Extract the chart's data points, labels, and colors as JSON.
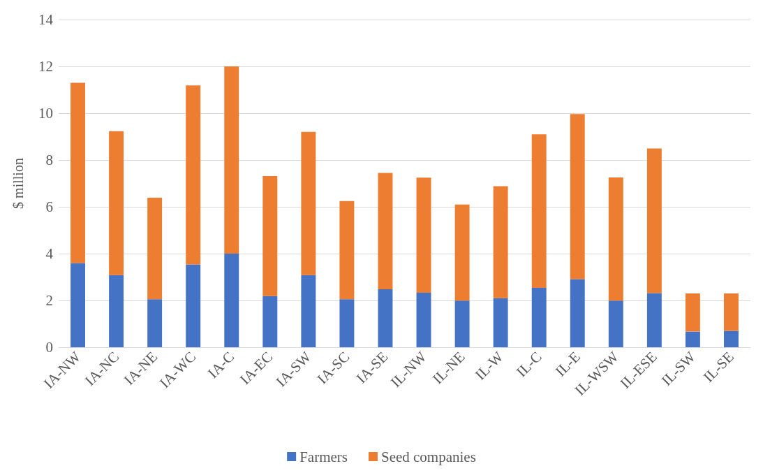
{
  "chart_data": {
    "type": "bar",
    "stacked": true,
    "ylabel": "$ million",
    "categories": [
      "IA-NW",
      "IA-NC",
      "IA-NE",
      "IA-WC",
      "IA-C",
      "IA-EC",
      "IA-SW",
      "IA-SC",
      "IA-SE",
      "IL-NW",
      "IL-NE",
      "IL-W",
      "IL-C",
      "IL-E",
      "IL-WSW",
      "IL-ESE",
      "IL-SW",
      "IL-SE"
    ],
    "series": [
      {
        "name": "Farmers",
        "color": "#4472c4",
        "values": [
          3.6,
          3.08,
          2.05,
          3.54,
          4.0,
          2.19,
          3.08,
          2.05,
          2.48,
          2.33,
          1.99,
          2.1,
          2.54,
          2.91,
          1.99,
          2.31,
          0.67,
          0.7
        ]
      },
      {
        "name": "Seed companies",
        "color": "#ed7d31",
        "values": [
          7.7,
          6.15,
          4.34,
          7.65,
          8.0,
          5.12,
          6.12,
          4.2,
          4.97,
          4.92,
          4.11,
          4.78,
          6.56,
          7.05,
          5.26,
          6.18,
          1.63,
          1.6
        ]
      }
    ],
    "ylim": [
      0,
      14
    ],
    "yticks": [
      0,
      2,
      4,
      6,
      8,
      10,
      12,
      14
    ],
    "grid": "y",
    "legend": "bottom"
  }
}
